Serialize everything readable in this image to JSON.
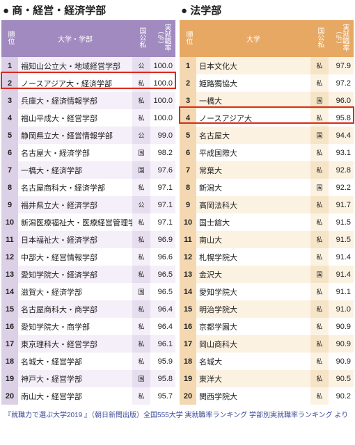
{
  "source_note": "『就職力で選ぶ大学2019 』（朝日新聞出版）全国555大学 実就職率ランキング 学部別実就職率ランキング より",
  "sections": [
    {
      "title": "● 商・経営・経済学部",
      "theme": {
        "header_bg": "#a08abf",
        "rank_bg": "#dcd0e6",
        "univ_bg_even": "#f4eff8",
        "univ_bg_odd": "#ffffff",
        "type_bg_even": "#e6deef",
        "type_bg_odd": "#f4eff8"
      },
      "headers": {
        "rank": "順位",
        "univ": "大学・学部",
        "type": "国公私",
        "rate": "実就職率（％）"
      },
      "highlight_rank": 2,
      "rows": [
        {
          "rank": 1,
          "univ": "福知山公立大・地域経営学部",
          "type": "公",
          "rate": "100.0"
        },
        {
          "rank": 2,
          "univ": "ノースアジア大・経済学部",
          "type": "私",
          "rate": "100.0"
        },
        {
          "rank": 3,
          "univ": "兵庫大・経済情報学部",
          "type": "私",
          "rate": "100.0"
        },
        {
          "rank": 4,
          "univ": "福山平成大・経営学部",
          "type": "私",
          "rate": "100.0"
        },
        {
          "rank": 5,
          "univ": "静岡県立大・経営情報学部",
          "type": "公",
          "rate": "99.0"
        },
        {
          "rank": 6,
          "univ": "名古屋大・経済学部",
          "type": "国",
          "rate": "98.2"
        },
        {
          "rank": 7,
          "univ": "一橋大・経済学部",
          "type": "国",
          "rate": "97.6"
        },
        {
          "rank": 8,
          "univ": "名古屋商科大・経済学部",
          "type": "私",
          "rate": "97.1"
        },
        {
          "rank": 9,
          "univ": "福井県立大・経済学部",
          "type": "公",
          "rate": "97.1"
        },
        {
          "rank": 10,
          "univ": "新潟医療福祉大・医療経営管理学部",
          "type": "私",
          "rate": "97.1"
        },
        {
          "rank": 11,
          "univ": "日本福祉大・経済学部",
          "type": "私",
          "rate": "96.9"
        },
        {
          "rank": 12,
          "univ": "中部大・経営情報学部",
          "type": "私",
          "rate": "96.6"
        },
        {
          "rank": 13,
          "univ": "愛知学院大・経済学部",
          "type": "私",
          "rate": "96.5"
        },
        {
          "rank": 14,
          "univ": "滋賀大・経済学部",
          "type": "国",
          "rate": "96.5"
        },
        {
          "rank": 15,
          "univ": "名古屋商科大・商学部",
          "type": "私",
          "rate": "96.4"
        },
        {
          "rank": 16,
          "univ": "愛知学院大・商学部",
          "type": "私",
          "rate": "96.4"
        },
        {
          "rank": 17,
          "univ": "東京理科大・経営学部",
          "type": "私",
          "rate": "96.1"
        },
        {
          "rank": 18,
          "univ": "名城大・経営学部",
          "type": "私",
          "rate": "95.9"
        },
        {
          "rank": 19,
          "univ": "神戸大・経営学部",
          "type": "国",
          "rate": "95.8"
        },
        {
          "rank": 20,
          "univ": "南山大・経営学部",
          "type": "私",
          "rate": "95.7"
        }
      ]
    },
    {
      "title": "● 法学部",
      "theme": {
        "header_bg": "#e6a862",
        "rank_bg": "#f3d8b2",
        "univ_bg_even": "#fcf2e2",
        "univ_bg_odd": "#ffffff",
        "type_bg_even": "#f6e4c7",
        "type_bg_odd": "#fcf2e2"
      },
      "headers": {
        "rank": "順位",
        "univ": "大学",
        "type": "国公私",
        "rate": "実就職率（％）"
      },
      "highlight_rank": 4,
      "rows": [
        {
          "rank": 1,
          "univ": "日本文化大",
          "type": "私",
          "rate": "97.9"
        },
        {
          "rank": 2,
          "univ": "姫路獨協大",
          "type": "私",
          "rate": "97.2"
        },
        {
          "rank": 3,
          "univ": "一橋大",
          "type": "国",
          "rate": "96.0"
        },
        {
          "rank": 4,
          "univ": "ノースアジア大",
          "type": "私",
          "rate": "95.8"
        },
        {
          "rank": 5,
          "univ": "名古屋大",
          "type": "国",
          "rate": "94.4"
        },
        {
          "rank": 6,
          "univ": "平成国際大",
          "type": "私",
          "rate": "93.1"
        },
        {
          "rank": 7,
          "univ": "常葉大",
          "type": "私",
          "rate": "92.8"
        },
        {
          "rank": 8,
          "univ": "新潟大",
          "type": "国",
          "rate": "92.2"
        },
        {
          "rank": 9,
          "univ": "高岡法科大",
          "type": "私",
          "rate": "91.7"
        },
        {
          "rank": 10,
          "univ": "国士舘大",
          "type": "私",
          "rate": "91.5"
        },
        {
          "rank": 11,
          "univ": "南山大",
          "type": "私",
          "rate": "91.5"
        },
        {
          "rank": 12,
          "univ": "札幌学院大",
          "type": "私",
          "rate": "91.4"
        },
        {
          "rank": 13,
          "univ": "金沢大",
          "type": "国",
          "rate": "91.4"
        },
        {
          "rank": 14,
          "univ": "愛知学院大",
          "type": "私",
          "rate": "91.1"
        },
        {
          "rank": 15,
          "univ": "明治学院大",
          "type": "私",
          "rate": "91.0"
        },
        {
          "rank": 16,
          "univ": "京都学園大",
          "type": "私",
          "rate": "90.9"
        },
        {
          "rank": 17,
          "univ": "岡山商科大",
          "type": "私",
          "rate": "90.9"
        },
        {
          "rank": 18,
          "univ": "名城大",
          "type": "私",
          "rate": "90.9"
        },
        {
          "rank": 19,
          "univ": "東洋大",
          "type": "私",
          "rate": "90.5"
        },
        {
          "rank": 20,
          "univ": "関西学院大",
          "type": "私",
          "rate": "90.2"
        }
      ]
    }
  ]
}
